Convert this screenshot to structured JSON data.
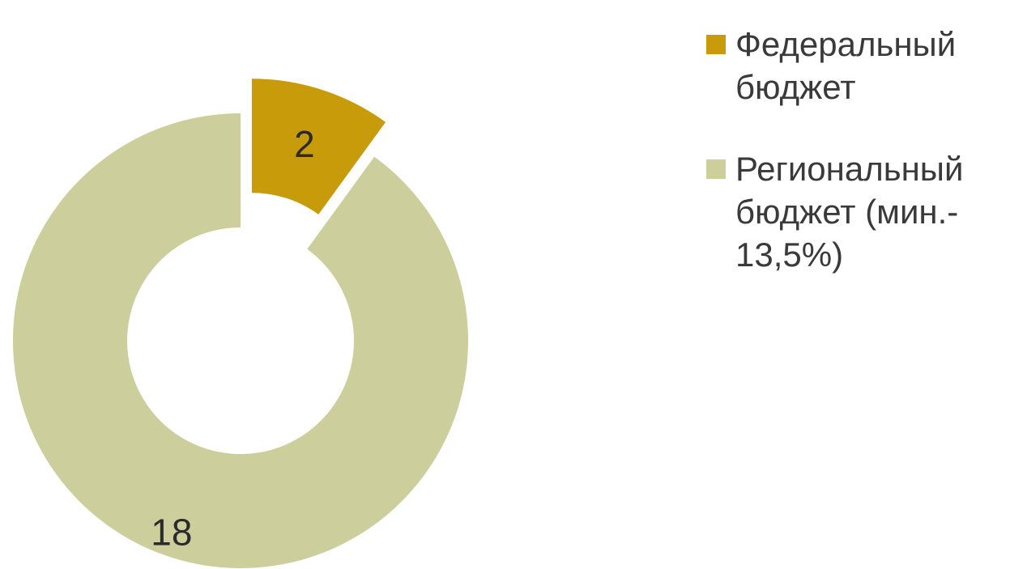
{
  "chart_data": {
    "type": "pie",
    "style": "exploded-donut",
    "categories": [
      "Федеральный\nбюджет",
      "Региональный\nбюджет (мин.-\n13,5%)"
    ],
    "values": [
      2,
      18
    ],
    "colors": [
      "#c79b0a",
      "#ccce9c"
    ],
    "title": "",
    "legend_position": "right",
    "data_labels": [
      "2",
      "18"
    ]
  }
}
